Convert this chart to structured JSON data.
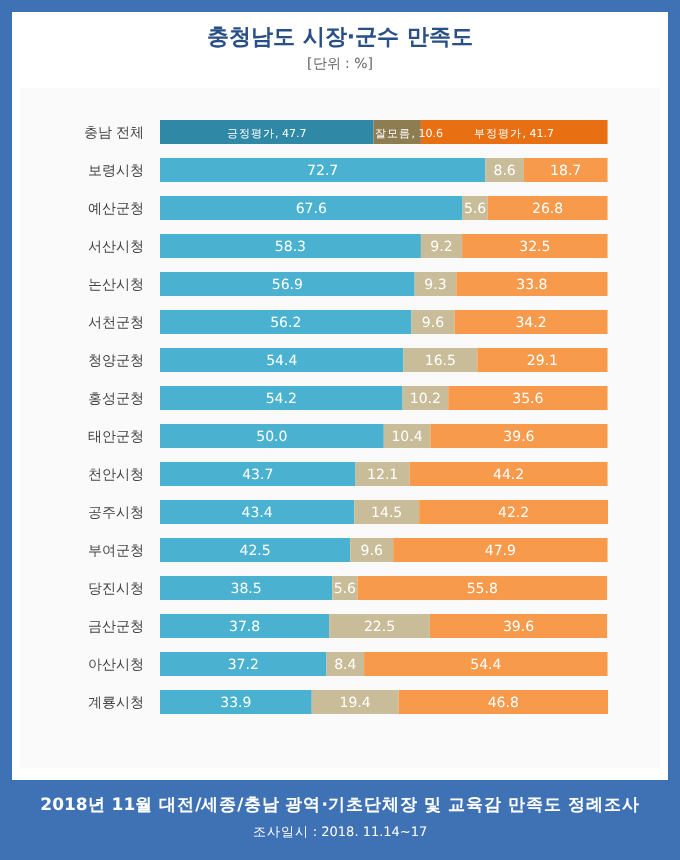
{
  "chart_data": {
    "type": "bar",
    "orientation": "horizontal",
    "stacked": true,
    "title": "충청남도 시장·군수 만족도",
    "subtitle": "[단위 : %]",
    "categories": [
      "충남 전체",
      "보령시청",
      "예산군청",
      "서산시청",
      "논산시청",
      "서천군청",
      "청양군청",
      "홍성군청",
      "태안군청",
      "천안시청",
      "공주시청",
      "부여군청",
      "당진시청",
      "금산군청",
      "아산시청",
      "계룡시청"
    ],
    "series": [
      {
        "name": "긍정평가",
        "color": "#4ab2d0",
        "colors": [
          "#2f88a6",
          null,
          null,
          null,
          null,
          null,
          null,
          null,
          null,
          null,
          null,
          null,
          null,
          null,
          null,
          null
        ],
        "values": [
          47.7,
          72.7,
          67.6,
          58.3,
          56.9,
          56.2,
          54.4,
          54.2,
          50.0,
          43.7,
          43.4,
          42.5,
          38.5,
          37.8,
          37.2,
          33.9
        ],
        "value_labels": [
          ", 47.7",
          "72.7",
          "67.6",
          "58.3",
          "56.9",
          "56.2",
          "54.4",
          "54.2",
          "50.0",
          "43.7",
          "43.4",
          "42.5",
          "38.5",
          "37.8",
          "37.2",
          "33.9"
        ]
      },
      {
        "name": "잘모름",
        "color": "#c9bc98",
        "colors": [
          "#8f7d52",
          null,
          null,
          null,
          null,
          null,
          null,
          null,
          null,
          null,
          null,
          null,
          null,
          null,
          null,
          null
        ],
        "values": [
          10.6,
          8.6,
          5.6,
          9.2,
          9.3,
          9.6,
          16.5,
          10.2,
          10.4,
          12.1,
          14.5,
          9.6,
          5.6,
          22.5,
          8.4,
          19.4
        ],
        "value_labels": [
          ", 10.6",
          "8.6",
          "5.6",
          "9.2",
          "9.3",
          "9.6",
          "16.5",
          "10.2",
          "10.4",
          "12.1",
          "14.5",
          "9.6",
          "5.6",
          "22.5",
          "8.4",
          "19.4"
        ]
      },
      {
        "name": "부정평가",
        "color": "#f89a4c",
        "colors": [
          "#e86f12",
          null,
          null,
          null,
          null,
          null,
          null,
          null,
          null,
          null,
          null,
          null,
          null,
          null,
          null,
          null
        ],
        "values": [
          41.7,
          18.7,
          26.8,
          32.5,
          33.8,
          34.2,
          29.1,
          35.6,
          39.6,
          44.2,
          42.2,
          47.9,
          55.8,
          39.6,
          54.4,
          46.8
        ],
        "value_labels": [
          ", 41.7",
          "18.7",
          "26.8",
          "32.5",
          "33.8",
          "34.2",
          "29.1",
          "35.6",
          "39.6",
          "44.2",
          "42.2",
          "47.9",
          "55.8",
          "39.6",
          "54.4",
          "46.8"
        ]
      }
    ],
    "annotations": [
      "2018년 11월 대전/세종/충남 광역·기초단체장 및 교육감 만족도 정례조사",
      "조사일시 : 2018. 11.14~17"
    ]
  }
}
